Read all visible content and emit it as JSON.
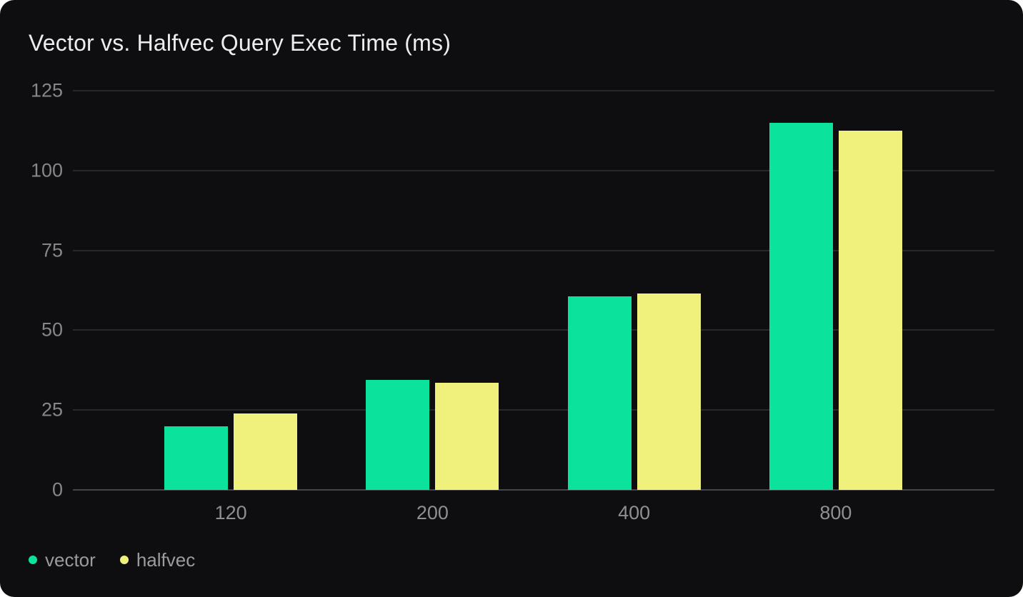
{
  "card": {
    "title": "Vector vs. Halfvec Query Exec Time (ms)"
  },
  "chart_data": {
    "type": "bar",
    "title": "Vector vs. Halfvec Query Exec Time (ms)",
    "categories": [
      "120",
      "200",
      "400",
      "800"
    ],
    "series": [
      {
        "name": "vector",
        "color": "#0be29b",
        "values": [
          20,
          34.5,
          60.5,
          115
        ]
      },
      {
        "name": "halfvec",
        "color": "#eff17c",
        "values": [
          24,
          33.5,
          61.5,
          112.5
        ]
      }
    ],
    "xlabel": "",
    "ylabel": "",
    "ylim": [
      0,
      125
    ],
    "yticks": [
      0,
      25,
      50,
      75,
      100,
      125
    ],
    "grid": true,
    "legend_position": "bottom-left"
  },
  "colors": {
    "card_background": "#0e0e10",
    "page_background": "#ffffff",
    "gridline": "#28282b",
    "baseline": "#46464a",
    "title_text": "#ededee",
    "ytick_text": "#85858c",
    "xtick_text": "#8e8e95",
    "legend_text": "#9b9ba1"
  }
}
